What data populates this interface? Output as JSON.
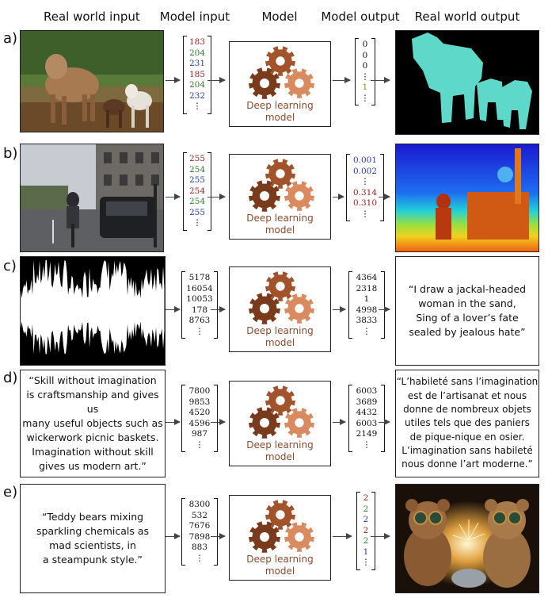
{
  "headers": {
    "real_world_input": "Real world input",
    "model_input": "Model input",
    "model": "Model",
    "model_output": "Model output",
    "real_world_output": "Real world output"
  },
  "model_label_line1": "Deep learning",
  "model_label_line2": "model",
  "colors": {
    "red": "#9b1c1c",
    "green": "#2e7d2e",
    "blue": "#283c9b",
    "black": "#111111",
    "olive": "#8a8a1a",
    "gear_dark": "#7a3b1c",
    "gear_mid": "#a2532b",
    "gear_light": "#d98a5e"
  },
  "rows": [
    {
      "label": "a)",
      "input_image": "cattle-photo",
      "model_input": [
        {
          "v": "183",
          "c": "red"
        },
        {
          "v": "204",
          "c": "green"
        },
        {
          "v": "231",
          "c": "blue"
        },
        {
          "v": "185",
          "c": "red"
        },
        {
          "v": "204",
          "c": "green"
        },
        {
          "v": "232",
          "c": "blue"
        },
        {
          "v": "⋮",
          "c": "black"
        }
      ],
      "model_output": [
        {
          "v": "0",
          "c": "black"
        },
        {
          "v": "0",
          "c": "black"
        },
        {
          "v": "0",
          "c": "black"
        },
        {
          "v": "⋮",
          "c": "black"
        },
        {
          "v": "1",
          "c": "olive"
        },
        {
          "v": "⋮",
          "c": "black"
        }
      ],
      "output_image": "segmentation-mask"
    },
    {
      "label": "b)",
      "input_image": "street-photo",
      "model_input": [
        {
          "v": "255",
          "c": "red"
        },
        {
          "v": "254",
          "c": "green"
        },
        {
          "v": "255",
          "c": "blue"
        },
        {
          "v": "254",
          "c": "red"
        },
        {
          "v": "254",
          "c": "green"
        },
        {
          "v": "255",
          "c": "blue"
        },
        {
          "v": "⋮",
          "c": "black"
        }
      ],
      "model_output": [
        {
          "v": "0.001",
          "c": "blue"
        },
        {
          "v": "0.002",
          "c": "blue"
        },
        {
          "v": "⋮",
          "c": "black"
        },
        {
          "v": "0.314",
          "c": "red"
        },
        {
          "v": "0.310",
          "c": "red"
        },
        {
          "v": "⋮",
          "c": "black"
        }
      ],
      "output_image": "depth-map"
    },
    {
      "label": "c)",
      "input_image": "audio-waveform",
      "model_input": [
        {
          "v": "5178",
          "c": "black"
        },
        {
          "v": "16054",
          "c": "black"
        },
        {
          "v": "10053",
          "c": "black"
        },
        {
          "v": "178",
          "c": "black"
        },
        {
          "v": "8763",
          "c": "black"
        },
        {
          "v": "⋮",
          "c": "black"
        }
      ],
      "model_output": [
        {
          "v": "4364",
          "c": "black"
        },
        {
          "v": "2318",
          "c": "black"
        },
        {
          "v": "1",
          "c": "black"
        },
        {
          "v": "4998",
          "c": "black"
        },
        {
          "v": "3833",
          "c": "black"
        },
        {
          "v": "⋮",
          "c": "black"
        }
      ],
      "output_text": [
        "“I draw a jackal-headed",
        "woman in the sand,",
        "Sing of a lover’s fate",
        "sealed by jealous hate”"
      ]
    },
    {
      "label": "d)",
      "input_text": [
        "“Skill without imagination",
        "is craftsmanship and gives us",
        "many useful objects such as",
        "wickerwork picnic baskets.",
        "Imagination without skill",
        "gives us modern art.”"
      ],
      "model_input": [
        {
          "v": "7800",
          "c": "black"
        },
        {
          "v": "9853",
          "c": "black"
        },
        {
          "v": "4520",
          "c": "black"
        },
        {
          "v": "4596",
          "c": "black"
        },
        {
          "v": "987",
          "c": "black"
        },
        {
          "v": "⋮",
          "c": "black"
        }
      ],
      "model_output": [
        {
          "v": "6003",
          "c": "black"
        },
        {
          "v": "3689",
          "c": "black"
        },
        {
          "v": "4432",
          "c": "black"
        },
        {
          "v": "6003",
          "c": "black"
        },
        {
          "v": "2149",
          "c": "black"
        },
        {
          "v": "⋮",
          "c": "black"
        }
      ],
      "output_text": [
        "“L’habileté sans l’imagination",
        "est de l’artisanat et nous",
        "donne de nombreux objets",
        "utiles tels que des paniers",
        "de pique-nique en osier.",
        "L’imagination sans habileté",
        "nous donne l’art moderne.”"
      ]
    },
    {
      "label": "e)",
      "input_text": [
        "“Teddy bears mixing",
        "sparkling chemicals as",
        "mad scientists, in",
        "a steampunk style.”"
      ],
      "model_input": [
        {
          "v": "8300",
          "c": "black"
        },
        {
          "v": "532",
          "c": "black"
        },
        {
          "v": "7676",
          "c": "black"
        },
        {
          "v": "7898",
          "c": "black"
        },
        {
          "v": "883",
          "c": "black"
        },
        {
          "v": "⋮",
          "c": "black"
        }
      ],
      "model_output": [
        {
          "v": "2",
          "c": "red"
        },
        {
          "v": "2",
          "c": "green"
        },
        {
          "v": "2",
          "c": "blue"
        },
        {
          "v": "2",
          "c": "red"
        },
        {
          "v": "2",
          "c": "green"
        },
        {
          "v": "1",
          "c": "blue"
        },
        {
          "v": "⋮",
          "c": "black"
        }
      ],
      "output_image": "teddy-bears-image"
    }
  ]
}
